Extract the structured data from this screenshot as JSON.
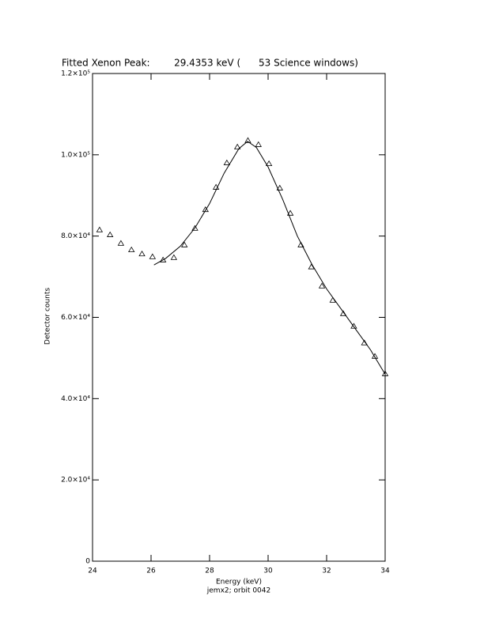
{
  "chart_data": {
    "type": "scatter",
    "title": "Fitted Xenon Peak:        29.4353 keV (      53 Science windows)",
    "x_label": "Energy (keV)",
    "y_label": "Detector counts",
    "footnote": "jemx2; orbit 0042",
    "xlim": [
      24,
      34
    ],
    "xticks": [
      24,
      26,
      28,
      30,
      32,
      34
    ],
    "ylim": [
      0,
      120000
    ],
    "yticks": [
      0,
      {
        "value": 20000,
        "label": "2.0×10⁴"
      },
      {
        "value": 40000,
        "label": "4.0×10⁴"
      },
      {
        "value": 60000,
        "label": "6.0×10⁴"
      },
      {
        "value": 80000,
        "label": "8.0×10⁴"
      },
      {
        "value": 100000,
        "label": "1.0×10⁵"
      },
      {
        "value": 120000,
        "label": "1.2×10⁵"
      }
    ],
    "series": [
      {
        "type": "scatter",
        "marker": "triangle",
        "color": "#000000",
        "x": [
          24.24,
          24.6,
          24.97,
          25.33,
          25.69,
          26.05,
          26.41,
          26.78,
          27.14,
          27.5,
          27.86,
          28.22,
          28.59,
          28.95,
          29.31,
          29.67,
          30.03,
          30.4,
          30.76,
          31.12,
          31.48,
          31.84,
          32.21,
          32.57,
          32.93,
          33.29,
          33.65,
          34.0
        ],
        "values": [
          81500,
          80300,
          78200,
          76600,
          75600,
          74900,
          74100,
          74700,
          77800,
          81900,
          86500,
          92000,
          98000,
          101900,
          103500,
          102500,
          97800,
          91800,
          85600,
          77800,
          72400,
          67700,
          64200,
          60900,
          57800,
          53700,
          50400,
          46100
        ]
      },
      {
        "type": "line",
        "color": "#000000",
        "x": [
          26.1,
          26.5,
          27.0,
          27.5,
          28.0,
          28.5,
          29.0,
          29.3,
          29.6,
          30.0,
          30.5,
          31.0,
          31.5,
          32.0,
          32.5,
          33.0,
          33.5,
          34.0
        ],
        "values": [
          72900,
          74500,
          77500,
          82000,
          88000,
          95500,
          101500,
          103300,
          101800,
          97000,
          89000,
          80000,
          73000,
          67000,
          62000,
          57000,
          52000,
          46000
        ]
      }
    ]
  }
}
